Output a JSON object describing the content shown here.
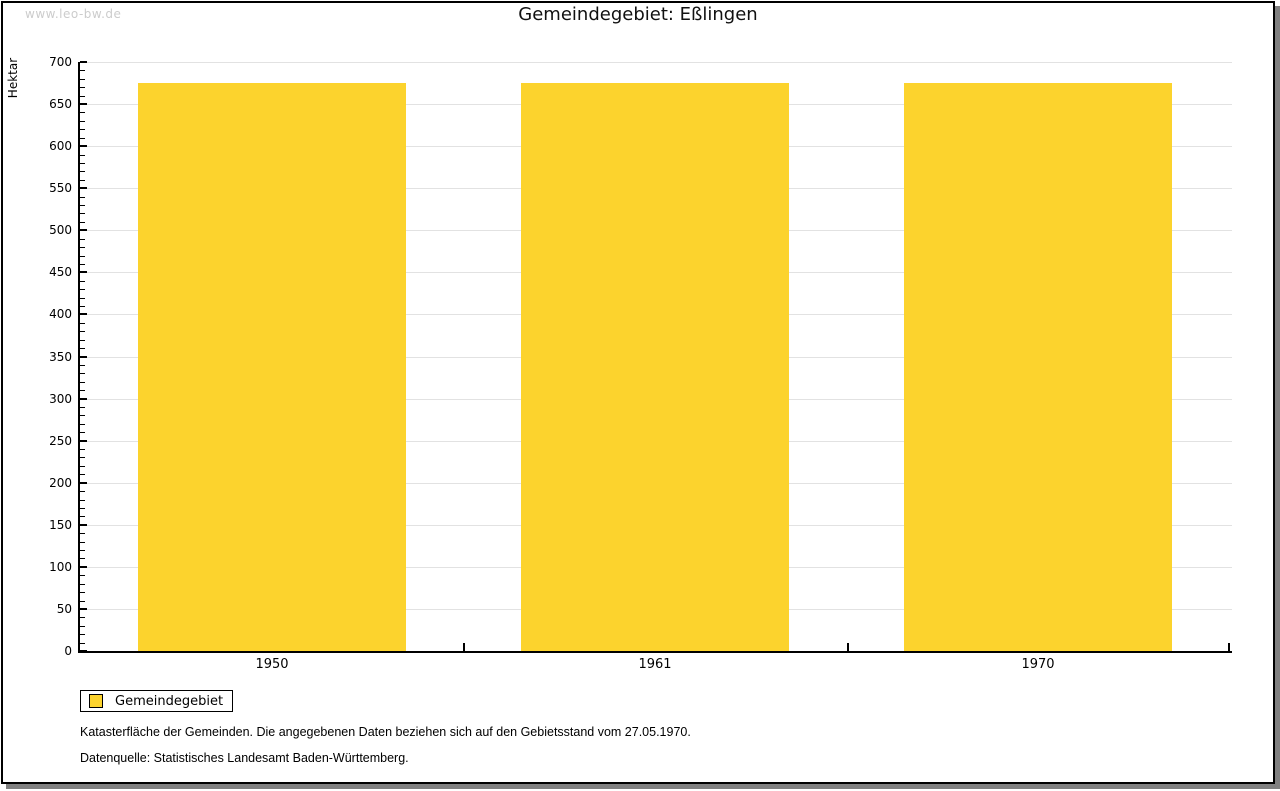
{
  "watermark": "www.leo-bw.de",
  "title": "Gemeindegebiet: Eßlingen",
  "legend": {
    "label": "Gemeindegebiet",
    "swatch_color": "#FCD32D"
  },
  "notes": [
    "Katasterfläche der Gemeinden. Die angegebenen Daten beziehen sich auf den Gebietsstand vom 27.05.1970.",
    "Datenquelle: Statistisches Landesamt Baden-Württemberg."
  ],
  "colors": {
    "bar": "#FCD32D",
    "gridline": "#E2E2E2",
    "axis": "#000000",
    "watermark": "#CCCCCC",
    "page_shadow": "#808080"
  },
  "chart_data": {
    "type": "bar",
    "title": "Gemeindegebiet: Eßlingen",
    "categories": [
      "1950",
      "1961",
      "1970"
    ],
    "series": [
      {
        "name": "Gemeindegebiet",
        "values": [
          675,
          675,
          675
        ]
      }
    ],
    "xlabel": "",
    "ylabel": "Hektar",
    "ylim": [
      0,
      700
    ],
    "ytick_step": 50,
    "yminor_step": 10,
    "yticks": [
      0,
      50,
      100,
      150,
      200,
      250,
      300,
      350,
      400,
      450,
      500,
      550,
      600,
      650,
      700
    ],
    "grid": "horizontal-major",
    "legend_position": "bottom-left",
    "bar_color": "#FCD32D",
    "bar_width_fraction": 0.7
  }
}
